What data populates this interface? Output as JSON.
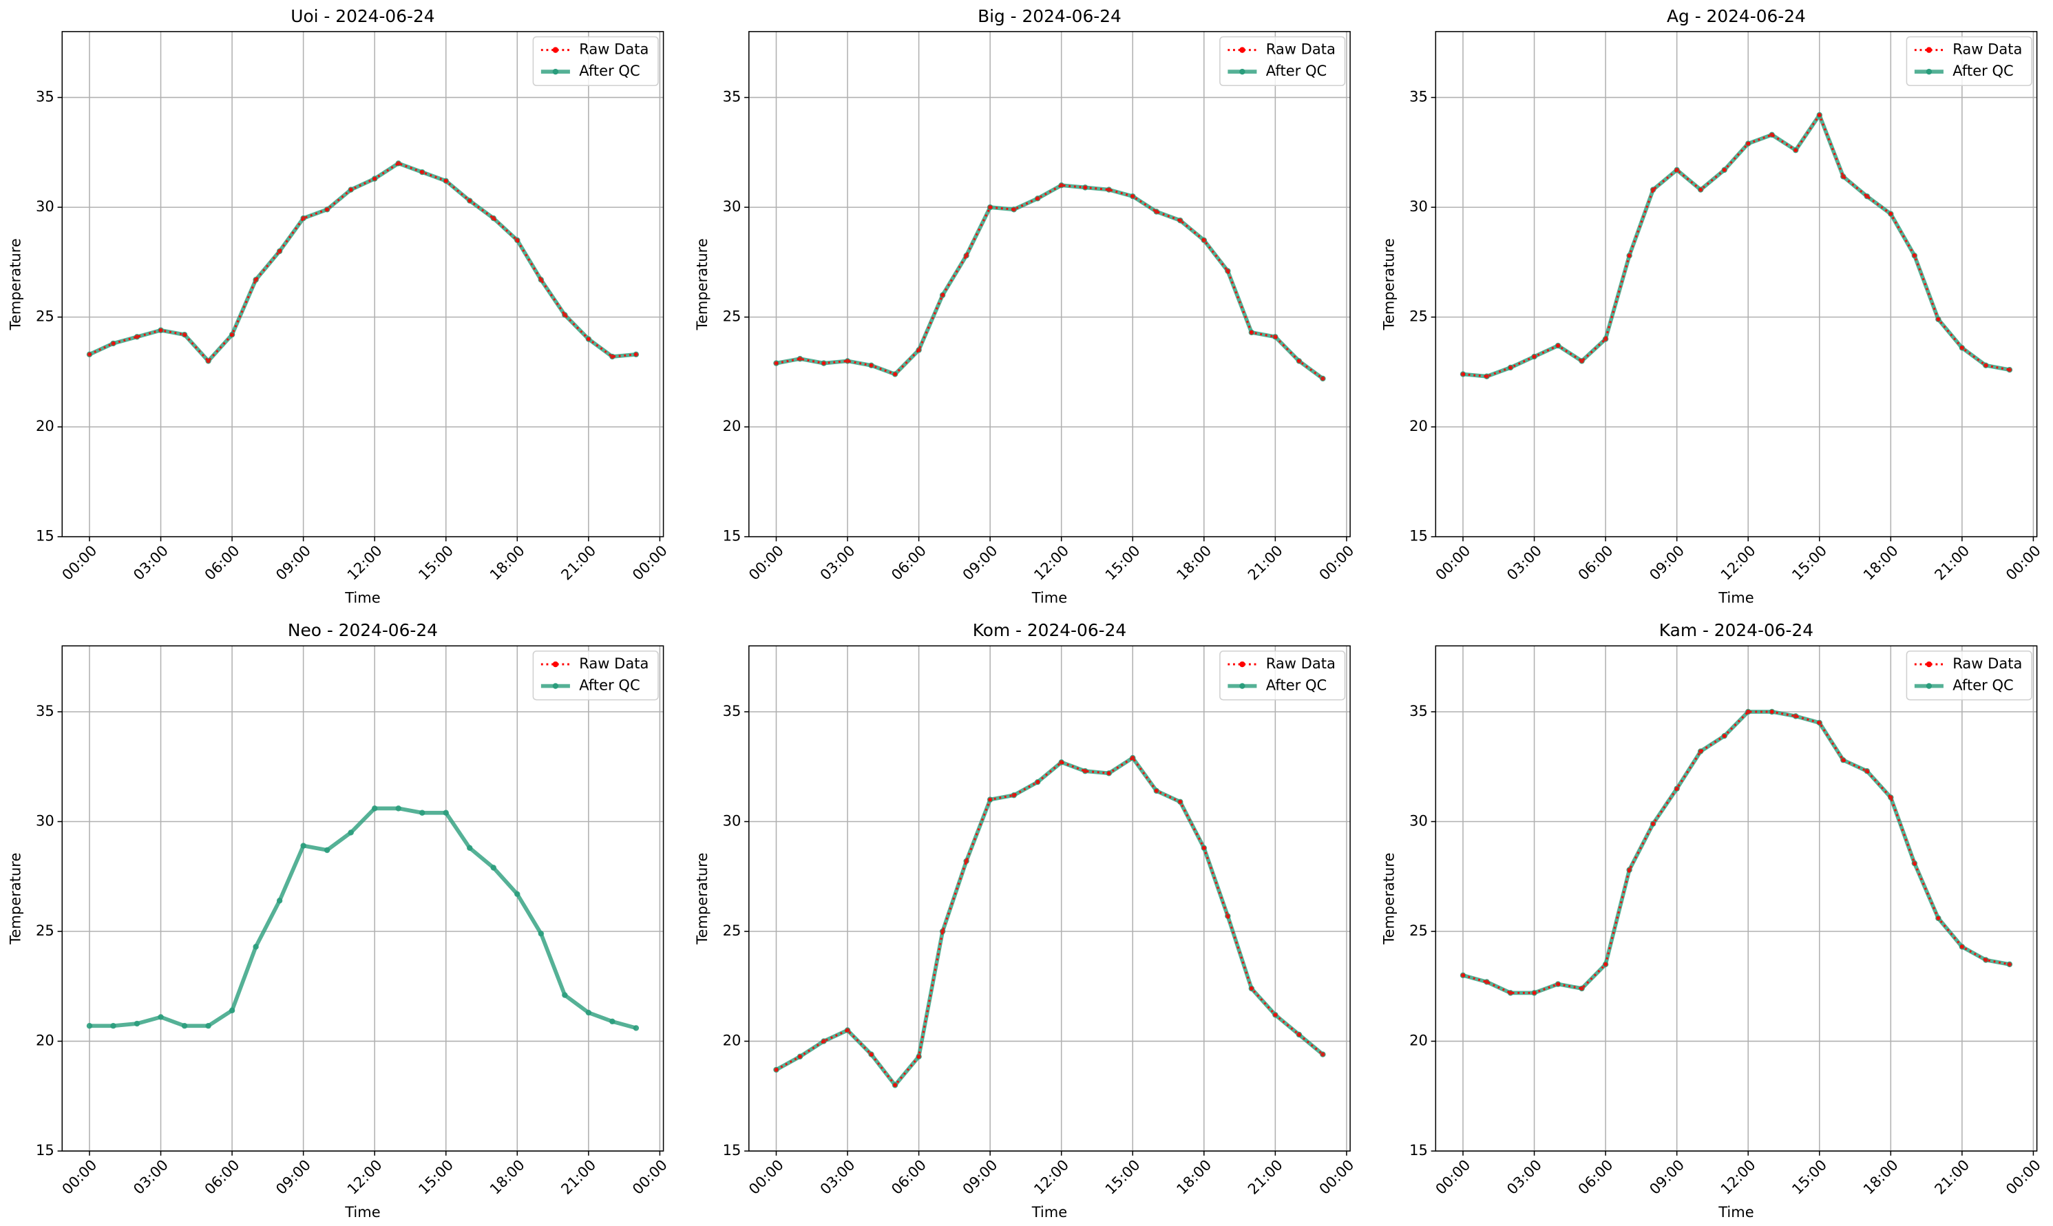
{
  "chart_data": [
    {
      "type": "line",
      "title": "Uoi - 2024-06-24",
      "xlabel": "Time",
      "ylabel": "Temperature",
      "x": [
        "00:00",
        "01:00",
        "02:00",
        "03:00",
        "04:00",
        "05:00",
        "06:00",
        "07:00",
        "08:00",
        "09:00",
        "10:00",
        "11:00",
        "12:00",
        "13:00",
        "14:00",
        "15:00",
        "16:00",
        "17:00",
        "18:00",
        "19:00",
        "20:00",
        "21:00",
        "22:00",
        "23:00"
      ],
      "series": [
        {
          "name": "Raw Data",
          "color": "#ff0000",
          "style": "dotted",
          "values": [
            23.3,
            23.8,
            24.1,
            24.4,
            24.2,
            23.0,
            24.2,
            26.7,
            28.0,
            29.5,
            29.9,
            30.8,
            31.3,
            32.0,
            31.6,
            31.2,
            30.3,
            29.5,
            28.5,
            26.7,
            25.1,
            24.0,
            23.2,
            23.3
          ]
        },
        {
          "name": "After QC",
          "color": "#2a9d7c",
          "style": "solid",
          "values": [
            23.3,
            23.8,
            24.1,
            24.4,
            24.2,
            23.0,
            24.2,
            26.7,
            28.0,
            29.5,
            29.9,
            30.8,
            31.3,
            32.0,
            31.6,
            31.2,
            30.3,
            29.5,
            28.5,
            26.7,
            25.1,
            24.0,
            23.2,
            23.3
          ]
        }
      ],
      "xlim": [
        -1.15,
        24.15
      ],
      "xticks": [
        {
          "value": 0,
          "label": "00:00"
        },
        {
          "value": 3,
          "label": "03:00"
        },
        {
          "value": 6,
          "label": "06:00"
        },
        {
          "value": 9,
          "label": "09:00"
        },
        {
          "value": 12,
          "label": "12:00"
        },
        {
          "value": 15,
          "label": "15:00"
        },
        {
          "value": 18,
          "label": "18:00"
        },
        {
          "value": 21,
          "label": "21:00"
        },
        {
          "value": 24,
          "label": "00:00"
        }
      ],
      "ylim": [
        15,
        38
      ],
      "yticks": [
        15,
        20,
        25,
        30,
        35
      ],
      "grid": true,
      "legend": "upper right"
    },
    {
      "type": "line",
      "title": "Big - 2024-06-24",
      "xlabel": "Time",
      "ylabel": "Temperature",
      "x": [
        "00:00",
        "01:00",
        "02:00",
        "03:00",
        "04:00",
        "05:00",
        "06:00",
        "07:00",
        "08:00",
        "09:00",
        "10:00",
        "11:00",
        "12:00",
        "13:00",
        "14:00",
        "15:00",
        "16:00",
        "17:00",
        "18:00",
        "19:00",
        "20:00",
        "21:00",
        "22:00",
        "23:00"
      ],
      "series": [
        {
          "name": "Raw Data",
          "color": "#ff0000",
          "style": "dotted",
          "values": [
            22.9,
            23.1,
            22.9,
            23.0,
            22.8,
            22.4,
            23.5,
            26.0,
            27.8,
            30.0,
            29.9,
            30.4,
            31.0,
            30.9,
            30.8,
            30.5,
            29.8,
            29.4,
            28.5,
            27.1,
            24.3,
            24.1,
            23.0,
            22.2
          ]
        },
        {
          "name": "After QC",
          "color": "#2a9d7c",
          "style": "solid",
          "values": [
            22.9,
            23.1,
            22.9,
            23.0,
            22.8,
            22.4,
            23.5,
            26.0,
            27.8,
            30.0,
            29.9,
            30.4,
            31.0,
            30.9,
            30.8,
            30.5,
            29.8,
            29.4,
            28.5,
            27.1,
            24.3,
            24.1,
            23.0,
            22.2
          ]
        }
      ],
      "xlim": [
        -1.15,
        24.15
      ],
      "xticks": [
        {
          "value": 0,
          "label": "00:00"
        },
        {
          "value": 3,
          "label": "03:00"
        },
        {
          "value": 6,
          "label": "06:00"
        },
        {
          "value": 9,
          "label": "09:00"
        },
        {
          "value": 12,
          "label": "12:00"
        },
        {
          "value": 15,
          "label": "15:00"
        },
        {
          "value": 18,
          "label": "18:00"
        },
        {
          "value": 21,
          "label": "21:00"
        },
        {
          "value": 24,
          "label": "00:00"
        }
      ],
      "ylim": [
        15,
        38
      ],
      "yticks": [
        15,
        20,
        25,
        30,
        35
      ],
      "grid": true,
      "legend": "upper right"
    },
    {
      "type": "line",
      "title": "Ag - 2024-06-24",
      "xlabel": "Time",
      "ylabel": "Temperature",
      "x": [
        "00:00",
        "01:00",
        "02:00",
        "03:00",
        "04:00",
        "05:00",
        "06:00",
        "07:00",
        "08:00",
        "09:00",
        "10:00",
        "11:00",
        "12:00",
        "13:00",
        "14:00",
        "15:00",
        "16:00",
        "17:00",
        "18:00",
        "19:00",
        "20:00",
        "21:00",
        "22:00",
        "23:00"
      ],
      "series": [
        {
          "name": "Raw Data",
          "color": "#ff0000",
          "style": "dotted",
          "values": [
            22.4,
            22.3,
            22.7,
            23.2,
            23.7,
            23.0,
            24.0,
            27.8,
            30.8,
            31.7,
            30.8,
            31.7,
            32.9,
            33.3,
            32.6,
            34.2,
            31.4,
            30.5,
            29.7,
            27.8,
            24.9,
            23.6,
            22.8,
            22.6
          ]
        },
        {
          "name": "After QC",
          "color": "#2a9d7c",
          "style": "solid",
          "values": [
            22.4,
            22.3,
            22.7,
            23.2,
            23.7,
            23.0,
            24.0,
            27.8,
            30.8,
            31.7,
            30.8,
            31.7,
            32.9,
            33.3,
            32.6,
            34.2,
            31.4,
            30.5,
            29.7,
            27.8,
            24.9,
            23.6,
            22.8,
            22.6
          ]
        }
      ],
      "xlim": [
        -1.15,
        24.15
      ],
      "xticks": [
        {
          "value": 0,
          "label": "00:00"
        },
        {
          "value": 3,
          "label": "03:00"
        },
        {
          "value": 6,
          "label": "06:00"
        },
        {
          "value": 9,
          "label": "09:00"
        },
        {
          "value": 12,
          "label": "12:00"
        },
        {
          "value": 15,
          "label": "15:00"
        },
        {
          "value": 18,
          "label": "18:00"
        },
        {
          "value": 21,
          "label": "21:00"
        },
        {
          "value": 24,
          "label": "00:00"
        }
      ],
      "ylim": [
        15,
        38
      ],
      "yticks": [
        15,
        20,
        25,
        30,
        35
      ],
      "grid": true,
      "legend": "upper right"
    },
    {
      "type": "line",
      "title": "Neo - 2024-06-24",
      "xlabel": "Time",
      "ylabel": "Temperature",
      "x": [
        "00:00",
        "01:00",
        "02:00",
        "03:00",
        "04:00",
        "05:00",
        "06:00",
        "07:00",
        "08:00",
        "09:00",
        "10:00",
        "11:00",
        "12:00",
        "13:00",
        "14:00",
        "15:00",
        "16:00",
        "17:00",
        "18:00",
        "19:00",
        "20:00",
        "21:00",
        "22:00",
        "23:00"
      ],
      "series": [
        {
          "name": "Raw Data",
          "color": "#ff0000",
          "style": "dotted",
          "values": [
            null,
            null,
            null,
            null,
            null,
            null,
            null,
            null,
            null,
            null,
            null,
            null,
            null,
            null,
            null,
            null,
            null,
            null,
            null,
            null,
            null,
            null,
            null,
            null
          ]
        },
        {
          "name": "After QC",
          "color": "#2a9d7c",
          "style": "solid",
          "values": [
            20.7,
            20.7,
            20.8,
            21.1,
            20.7,
            20.7,
            21.4,
            24.3,
            26.4,
            28.9,
            28.7,
            29.5,
            30.6,
            30.6,
            30.4,
            30.4,
            28.8,
            27.9,
            26.7,
            24.9,
            22.1,
            21.3,
            20.9,
            20.6
          ]
        }
      ],
      "xlim": [
        -1.15,
        24.15
      ],
      "xticks": [
        {
          "value": 0,
          "label": "00:00"
        },
        {
          "value": 3,
          "label": "03:00"
        },
        {
          "value": 6,
          "label": "06:00"
        },
        {
          "value": 9,
          "label": "09:00"
        },
        {
          "value": 12,
          "label": "12:00"
        },
        {
          "value": 15,
          "label": "15:00"
        },
        {
          "value": 18,
          "label": "18:00"
        },
        {
          "value": 21,
          "label": "21:00"
        },
        {
          "value": 24,
          "label": "00:00"
        }
      ],
      "ylim": [
        15,
        38
      ],
      "yticks": [
        15,
        20,
        25,
        30,
        35
      ],
      "grid": true,
      "legend": "upper right"
    },
    {
      "type": "line",
      "title": "Kom - 2024-06-24",
      "xlabel": "Time",
      "ylabel": "Temperature",
      "x": [
        "00:00",
        "01:00",
        "02:00",
        "03:00",
        "04:00",
        "05:00",
        "06:00",
        "07:00",
        "08:00",
        "09:00",
        "10:00",
        "11:00",
        "12:00",
        "13:00",
        "14:00",
        "15:00",
        "16:00",
        "17:00",
        "18:00",
        "19:00",
        "20:00",
        "21:00",
        "22:00",
        "23:00"
      ],
      "series": [
        {
          "name": "Raw Data",
          "color": "#ff0000",
          "style": "dotted",
          "values": [
            18.7,
            19.3,
            20.0,
            20.5,
            19.4,
            18.0,
            19.3,
            25.0,
            28.2,
            31.0,
            31.2,
            31.8,
            32.7,
            32.3,
            32.2,
            32.9,
            31.4,
            30.9,
            28.8,
            25.7,
            22.4,
            21.2,
            20.3,
            19.4
          ]
        },
        {
          "name": "After QC",
          "color": "#2a9d7c",
          "style": "solid",
          "values": [
            18.7,
            19.3,
            20.0,
            20.5,
            19.4,
            18.0,
            19.3,
            25.0,
            28.2,
            31.0,
            31.2,
            31.8,
            32.7,
            32.3,
            32.2,
            32.9,
            31.4,
            30.9,
            28.8,
            25.7,
            22.4,
            21.2,
            20.3,
            19.4
          ]
        }
      ],
      "xlim": [
        -1.15,
        24.15
      ],
      "xticks": [
        {
          "value": 0,
          "label": "00:00"
        },
        {
          "value": 3,
          "label": "03:00"
        },
        {
          "value": 6,
          "label": "06:00"
        },
        {
          "value": 9,
          "label": "09:00"
        },
        {
          "value": 12,
          "label": "12:00"
        },
        {
          "value": 15,
          "label": "15:00"
        },
        {
          "value": 18,
          "label": "18:00"
        },
        {
          "value": 21,
          "label": "21:00"
        },
        {
          "value": 24,
          "label": "00:00"
        }
      ],
      "ylim": [
        15,
        38
      ],
      "yticks": [
        15,
        20,
        25,
        30,
        35
      ],
      "grid": true,
      "legend": "upper right"
    },
    {
      "type": "line",
      "title": "Kam - 2024-06-24",
      "xlabel": "Time",
      "ylabel": "Temperature",
      "x": [
        "00:00",
        "01:00",
        "02:00",
        "03:00",
        "04:00",
        "05:00",
        "06:00",
        "07:00",
        "08:00",
        "09:00",
        "10:00",
        "11:00",
        "12:00",
        "13:00",
        "14:00",
        "15:00",
        "16:00",
        "17:00",
        "18:00",
        "19:00",
        "20:00",
        "21:00",
        "22:00",
        "23:00"
      ],
      "series": [
        {
          "name": "Raw Data",
          "color": "#ff0000",
          "style": "dotted",
          "values": [
            23.0,
            22.7,
            22.2,
            22.2,
            22.6,
            22.4,
            23.5,
            27.8,
            29.9,
            31.5,
            33.2,
            33.9,
            35.0,
            35.0,
            34.8,
            34.5,
            32.8,
            32.3,
            31.1,
            28.1,
            25.6,
            24.3,
            23.7,
            23.5
          ]
        },
        {
          "name": "After QC",
          "color": "#2a9d7c",
          "style": "solid",
          "values": [
            23.0,
            22.7,
            22.2,
            22.2,
            22.6,
            22.4,
            23.5,
            27.8,
            29.9,
            31.5,
            33.2,
            33.9,
            35.0,
            35.0,
            34.8,
            34.5,
            32.8,
            32.3,
            31.1,
            28.1,
            25.6,
            24.3,
            23.7,
            23.5
          ]
        }
      ],
      "xlim": [
        -1.15,
        24.15
      ],
      "xticks": [
        {
          "value": 0,
          "label": "00:00"
        },
        {
          "value": 3,
          "label": "03:00"
        },
        {
          "value": 6,
          "label": "06:00"
        },
        {
          "value": 9,
          "label": "09:00"
        },
        {
          "value": 12,
          "label": "12:00"
        },
        {
          "value": 15,
          "label": "15:00"
        },
        {
          "value": 18,
          "label": "18:00"
        },
        {
          "value": 21,
          "label": "21:00"
        },
        {
          "value": 24,
          "label": "00:00"
        }
      ],
      "ylim": [
        15,
        38
      ],
      "yticks": [
        15,
        20,
        25,
        30,
        35
      ],
      "grid": true,
      "legend": "upper right"
    }
  ]
}
